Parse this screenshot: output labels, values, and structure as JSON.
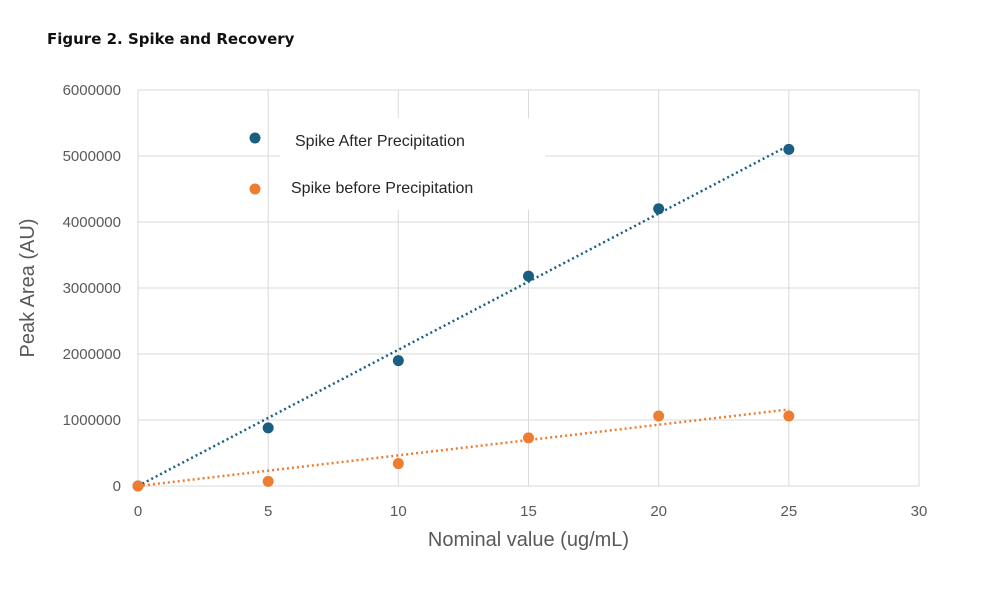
{
  "figure_title": "Figure 2. Spike and Recovery",
  "colors": {
    "after": "#1a5e82",
    "before": "#ed7d31",
    "grid": "#d9d9d9",
    "axis_text": "#595959"
  },
  "chart_data": {
    "type": "scatter",
    "title": "",
    "xlabel": "Nominal value (ug/mL)",
    "ylabel": "Peak Area (AU)",
    "xlim": [
      0,
      30
    ],
    "ylim": [
      0,
      6000000
    ],
    "x_ticks": [
      "0",
      "5",
      "10",
      "15",
      "20",
      "25",
      "30"
    ],
    "y_ticks": [
      "0",
      "1000000",
      "2000000",
      "3000000",
      "4000000",
      "5000000",
      "6000000"
    ],
    "grid": true,
    "legend_position": "top-left",
    "series": [
      {
        "name": "Spike After Precipitation",
        "color": "#1a5e82",
        "x": [
          0,
          5,
          10,
          15,
          20,
          25
        ],
        "y": [
          0,
          880000,
          1900000,
          3180000,
          4200000,
          5100000
        ],
        "trendline": {
          "type": "linear",
          "style": "dotted",
          "from": [
            0,
            0
          ],
          "to": [
            25,
            5160000
          ]
        }
      },
      {
        "name": "Spike before Precipitation",
        "color": "#ed7d31",
        "x": [
          0,
          5,
          10,
          15,
          20,
          25
        ],
        "y": [
          0,
          70000,
          340000,
          730000,
          1060000,
          1060000
        ],
        "trendline": {
          "type": "linear",
          "style": "dotted",
          "from": [
            0,
            0
          ],
          "to": [
            25,
            1160000
          ]
        }
      }
    ]
  }
}
